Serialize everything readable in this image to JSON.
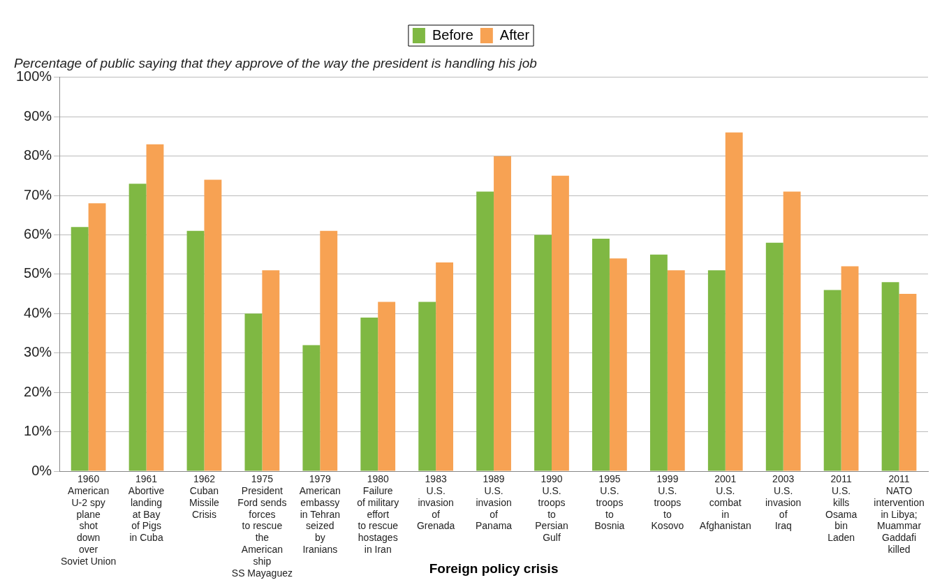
{
  "chart_data": {
    "type": "bar",
    "title": "Percentage of public saying that they approve of the way the president is handling his job",
    "xlabel": "Foreign policy crisis",
    "categories": [
      "1960\nAmerican\nU-2 spy\nplane\nshot\ndown\nover\nSoviet Union",
      "1961\nAbortive\nlanding\nat Bay\nof Pigs\nin Cuba",
      "1962\nCuban\nMissile\nCrisis",
      "1975\nPresident\nFord sends\nforces\nto rescue\nthe\nAmerican\nship\nSS Mayaguez",
      "1979\nAmerican\nembassy\nin Tehran\nseized\nby\nIranians",
      "1980\nFailure\nof military\neffort\nto rescue\nhostages\nin Iran",
      "1983\nU.S.\ninvasion\nof\nGrenada",
      "1989\nU.S.\ninvasion\nof\nPanama",
      "1990\nU.S.\ntroops\nto\nPersian\nGulf",
      "1995\nU.S.\ntroops\nto\nBosnia",
      "1999\nU.S.\ntroops\nto\nKosovo",
      "2001\nU.S.\ncombat\nin\nAfghanistan",
      "2003\nU.S.\ninvasion\nof\nIraq",
      "2011\nU.S.\nkills\nOsama\nbin\nLaden",
      "2011\nNATO\nintervention\nin Libya;\nMuammar\nGaddafi\nkilled"
    ],
    "series": [
      {
        "name": "Before",
        "color": "#7fb843",
        "values": [
          62,
          73,
          61,
          40,
          32,
          39,
          43,
          71,
          60,
          59,
          55,
          51,
          58,
          46,
          48
        ]
      },
      {
        "name": "After",
        "color": "#f7a253",
        "values": [
          68,
          83,
          74,
          51,
          61,
          43,
          53,
          80,
          75,
          54,
          51,
          86,
          71,
          52,
          45
        ]
      }
    ],
    "ylim": [
      0,
      100
    ],
    "yticks": [
      {
        "value": 0,
        "label": "0%"
      },
      {
        "value": 10,
        "label": "10%"
      },
      {
        "value": 20,
        "label": "20%"
      },
      {
        "value": 30,
        "label": "30%"
      },
      {
        "value": 40,
        "label": "40%"
      },
      {
        "value": 50,
        "label": "50%"
      },
      {
        "value": 60,
        "label": "60%"
      },
      {
        "value": 70,
        "label": "70%"
      },
      {
        "value": 80,
        "label": "80%"
      },
      {
        "value": 90,
        "label": "90%"
      },
      {
        "value": 100,
        "label": "100%"
      }
    ],
    "grid": "y",
    "legend": "top"
  }
}
